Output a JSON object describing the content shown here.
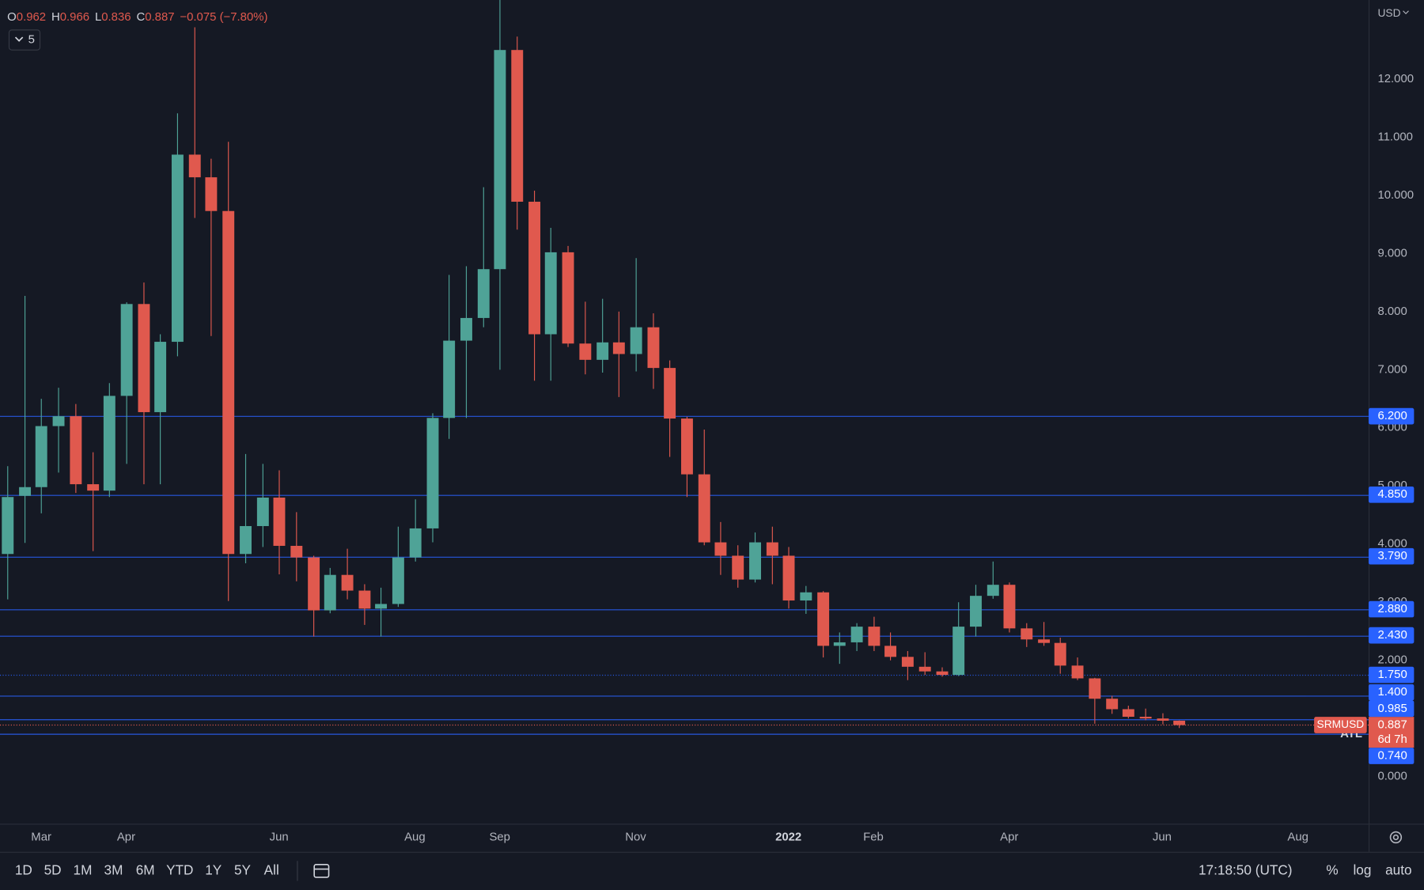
{
  "chart_data": {
    "type": "candlestick",
    "categories": [
      null,
      null,
      "Mar",
      null,
      null,
      null,
      null,
      "Apr",
      null,
      null,
      null,
      null,
      null,
      null,
      null,
      null,
      "Jun",
      null,
      null,
      null,
      null,
      null,
      null,
      null,
      "Aug",
      null,
      null,
      null,
      null,
      "Sep",
      null,
      null,
      null,
      null,
      null,
      null,
      null,
      "Nov",
      null,
      null,
      null,
      null,
      null,
      null,
      null,
      null,
      "2022",
      null,
      null,
      null,
      null,
      "Feb",
      null,
      null,
      null,
      null,
      null,
      null,
      null,
      "Apr",
      null,
      null,
      null,
      null,
      null,
      null,
      null,
      null,
      "Jun",
      null,
      null,
      null,
      null,
      null,
      null,
      null,
      "Aug"
    ],
    "open": [
      3.83,
      4.83,
      4.98,
      6.03,
      6.2,
      5.03,
      4.92,
      6.55,
      8.13,
      6.27,
      7.48,
      10.7,
      10.31,
      9.73,
      3.83,
      4.31,
      4.8,
      3.97,
      3.77,
      2.86,
      3.47,
      3.2,
      2.89,
      2.97,
      3.77,
      4.27,
      6.17,
      7.5,
      7.89,
      8.73,
      12.5,
      9.89,
      7.61,
      9.02,
      7.45,
      7.17,
      7.47,
      7.27,
      7.73,
      7.03,
      6.16,
      5.2,
      4.03,
      3.8,
      3.39,
      4.03,
      3.8,
      3.03,
      3.17,
      2.25,
      2.31,
      2.58,
      2.25,
      2.06,
      1.89,
      1.81,
      1.75,
      2.58,
      3.11,
      3.3,
      2.55,
      2.36,
      2.3,
      1.91,
      1.69,
      1.34,
      1.16,
      1.03,
      1.0,
      0.962,
      null,
      null,
      null,
      null,
      null,
      null,
      null
    ],
    "high": [
      5.34,
      8.27,
      6.5,
      6.69,
      6.41,
      5.58,
      6.77,
      8.16,
      8.5,
      7.61,
      11.41,
      12.89,
      10.63,
      10.92,
      5.55,
      5.38,
      5.27,
      4.55,
      3.8,
      3.59,
      3.92,
      3.31,
      3.25,
      4.3,
      4.77,
      6.25,
      8.63,
      8.78,
      10.14,
      13.4,
      12.73,
      10.08,
      9.44,
      9.13,
      8.17,
      8.22,
      8.0,
      8.92,
      7.97,
      7.16,
      6.19,
      5.97,
      4.38,
      3.98,
      4.2,
      4.3,
      3.95,
      3.28,
      3.19,
      2.48,
      2.64,
      2.75,
      2.48,
      2.16,
      2.14,
      1.88,
      3.0,
      3.3,
      3.7,
      3.34,
      2.64,
      2.66,
      2.39,
      2.05,
      1.7,
      1.39,
      1.22,
      1.17,
      1.09,
      0.966,
      null,
      null,
      null,
      null,
      null,
      null,
      null
    ],
    "low": [
      3.05,
      4.02,
      4.53,
      5.23,
      4.88,
      3.88,
      4.81,
      5.38,
      5.03,
      5.03,
      7.23,
      9.61,
      7.58,
      3.02,
      3.67,
      3.95,
      3.48,
      3.36,
      2.41,
      2.81,
      3.05,
      2.61,
      2.41,
      2.92,
      3.7,
      4.03,
      5.81,
      6.17,
      7.73,
      7.0,
      9.41,
      6.81,
      6.81,
      7.39,
      6.92,
      6.95,
      6.53,
      6.97,
      6.67,
      5.5,
      4.81,
      3.98,
      3.47,
      3.25,
      3.34,
      3.31,
      2.89,
      2.8,
      2.05,
      1.94,
      2.16,
      2.16,
      2.0,
      1.66,
      1.75,
      1.72,
      1.73,
      2.41,
      3.06,
      2.48,
      2.23,
      2.25,
      1.77,
      1.66,
      0.91,
      1.08,
      1.0,
      0.97,
      0.9,
      0.836,
      null,
      null,
      null,
      null,
      null,
      null,
      null
    ],
    "close": [
      4.81,
      4.98,
      6.03,
      6.2,
      5.03,
      4.92,
      6.55,
      8.13,
      6.27,
      7.48,
      10.7,
      10.31,
      9.73,
      3.83,
      4.31,
      4.8,
      3.97,
      3.77,
      2.86,
      3.47,
      3.2,
      2.89,
      2.97,
      3.77,
      4.27,
      6.17,
      7.5,
      7.89,
      8.73,
      12.5,
      9.89,
      7.61,
      9.02,
      7.45,
      7.17,
      7.47,
      7.27,
      7.73,
      7.03,
      6.16,
      5.2,
      4.03,
      3.8,
      3.39,
      4.03,
      3.8,
      3.03,
      3.17,
      2.25,
      2.31,
      2.58,
      2.25,
      2.06,
      1.89,
      1.81,
      1.75,
      2.58,
      3.11,
      3.3,
      2.55,
      2.36,
      2.3,
      1.91,
      1.69,
      1.34,
      1.16,
      1.03,
      1.0,
      0.962,
      0.887,
      null,
      null,
      null,
      null,
      null,
      null,
      null
    ],
    "up_color": "#4fa397",
    "down_color": "#e0594e",
    "ylim": [
      -0.81,
      13.36
    ],
    "yticks": [
      {
        "value": 0,
        "label": "0.000"
      },
      {
        "value": 2,
        "label": "2.000"
      },
      {
        "value": 3,
        "label": "3.000"
      },
      {
        "value": 4,
        "label": "4.000"
      },
      {
        "value": 5,
        "label": "5.000"
      },
      {
        "value": 6,
        "label": "6.000"
      },
      {
        "value": 7,
        "label": "7.000"
      },
      {
        "value": 8,
        "label": "8.000"
      },
      {
        "value": 9,
        "label": "9.000"
      },
      {
        "value": 10,
        "label": "10.000"
      },
      {
        "value": 11,
        "label": "11.000"
      },
      {
        "value": 12,
        "label": "12.000"
      }
    ],
    "currency": "USD",
    "levels": [
      {
        "value": 6.2,
        "label": "6.200"
      },
      {
        "value": 4.85,
        "label": "4.850"
      },
      {
        "value": 3.79,
        "label": "3.790"
      },
      {
        "value": 2.88,
        "label": "2.880"
      },
      {
        "value": 2.43,
        "label": "2.430"
      },
      {
        "value": 1.75,
        "label": "1.750",
        "line": "dotted"
      },
      {
        "value": 1.4,
        "label": "1.400"
      },
      {
        "value": 0.985,
        "label": "0.985"
      },
      {
        "value": 0.74,
        "label": "0.740"
      }
    ],
    "level_color": "#2962ff",
    "last_price": {
      "symbol": "SRMUSD",
      "value": 0.887,
      "countdown": "6d 7h",
      "color": "#e0594e",
      "note": "ATL"
    },
    "header": {
      "items": [
        {
          "label": "O",
          "value": 0.962
        },
        {
          "label": "H",
          "value": 0.966
        },
        {
          "label": "L",
          "value": 0.836
        },
        {
          "label": "C",
          "value": 0.887
        }
      ],
      "change": "−0.075 (−7.80%)",
      "indicator_count": "5"
    }
  },
  "toolbar": {
    "ranges": [
      "1D",
      "5D",
      "1M",
      "3M",
      "6M",
      "YTD",
      "1Y",
      "5Y",
      "All"
    ],
    "clock": "17:18:50 (UTC)",
    "options": [
      "%",
      "log",
      "auto"
    ]
  }
}
